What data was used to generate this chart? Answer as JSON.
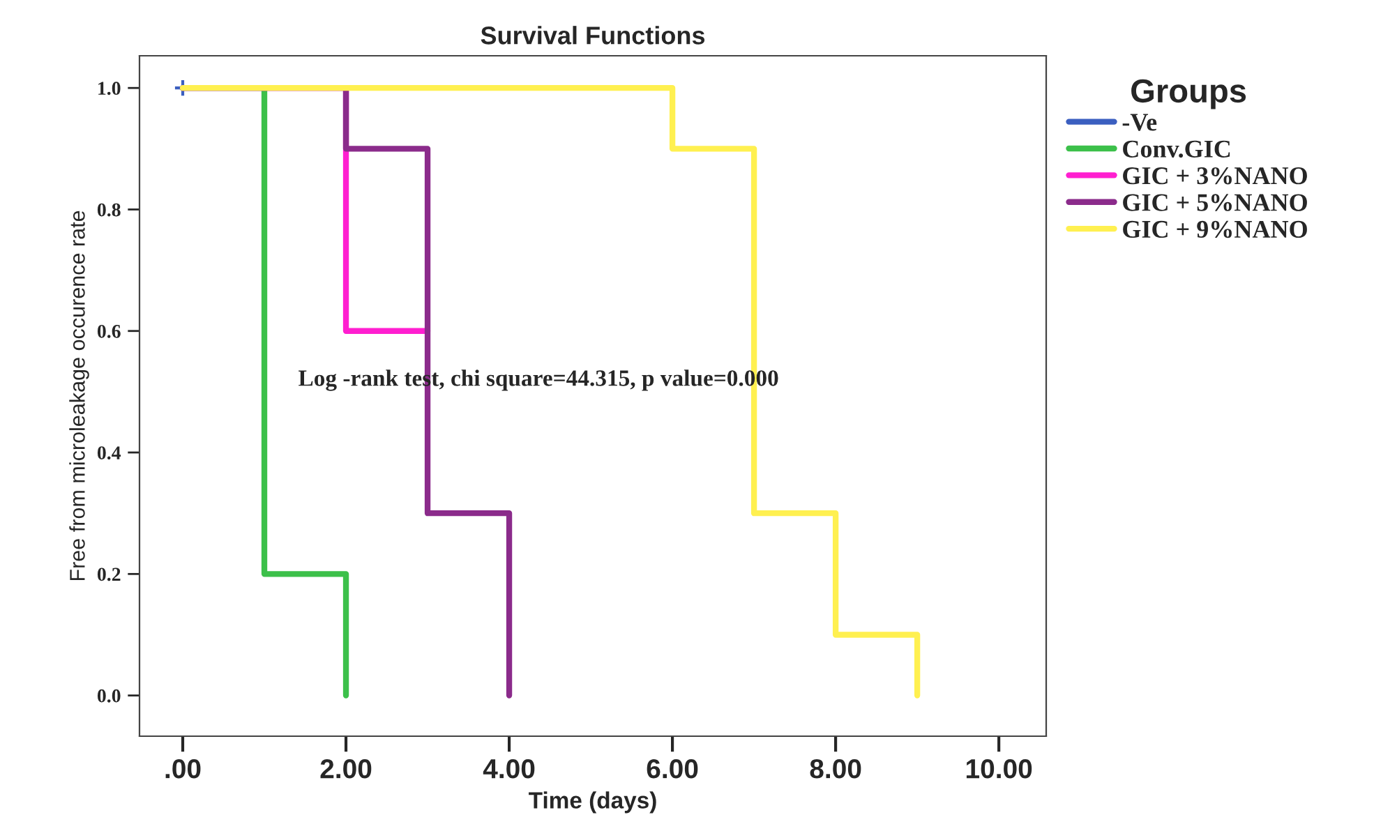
{
  "chart_data": {
    "type": "step",
    "title": "Survival Functions",
    "xlabel": "Time (days)",
    "ylabel": "Free from microleakage occurence rate",
    "legend_title": "Groups",
    "legend": "right",
    "series": [
      {
        "name": "-Ve",
        "color": "#3b5fc0",
        "x": [
          0
        ],
        "values": [
          1.0
        ],
        "marker": "cross"
      },
      {
        "name": "Conv.GIC",
        "color": "#3cc04a",
        "x": [
          0,
          1,
          2
        ],
        "values": [
          1.0,
          0.2,
          0.0
        ]
      },
      {
        "name": "GIC + 3%NANO",
        "color": "#ff1fd0",
        "x": [
          0,
          2,
          3
        ],
        "values": [
          1.0,
          0.6,
          0.6
        ]
      },
      {
        "name": "GIC + 5%NANO",
        "color": "#8b2b8b",
        "x": [
          0,
          2,
          3,
          4
        ],
        "values": [
          1.0,
          0.9,
          0.3,
          0.0
        ]
      },
      {
        "name": "GIC + 9%NANO",
        "color": "#fff050",
        "x": [
          0,
          6,
          7,
          8,
          9
        ],
        "values": [
          1.0,
          0.9,
          0.3,
          0.1,
          0.0
        ]
      }
    ],
    "xlim": [
      -0.53,
      10.58
    ],
    "xticks": [
      {
        "value": 0,
        "label": ".00"
      },
      {
        "value": 2,
        "label": "2.00"
      },
      {
        "value": 4,
        "label": "4.00"
      },
      {
        "value": 6,
        "label": "6.00"
      },
      {
        "value": 8,
        "label": "8.00"
      },
      {
        "value": 10,
        "label": "10.00"
      }
    ],
    "ylim": [
      -0.067,
      1.053
    ],
    "yticks": [
      {
        "value": 0,
        "label": "0.0"
      },
      {
        "value": 0.2,
        "label": "0.2"
      },
      {
        "value": 0.4,
        "label": "0.4"
      },
      {
        "value": 0.6,
        "label": "0.6"
      },
      {
        "value": 0.8,
        "label": "0.8"
      },
      {
        "value": 1.0,
        "label": "1.0"
      }
    ],
    "grid": false,
    "annotations": [
      "Log -rank test, chi square=44.315, p value=0.000"
    ]
  }
}
